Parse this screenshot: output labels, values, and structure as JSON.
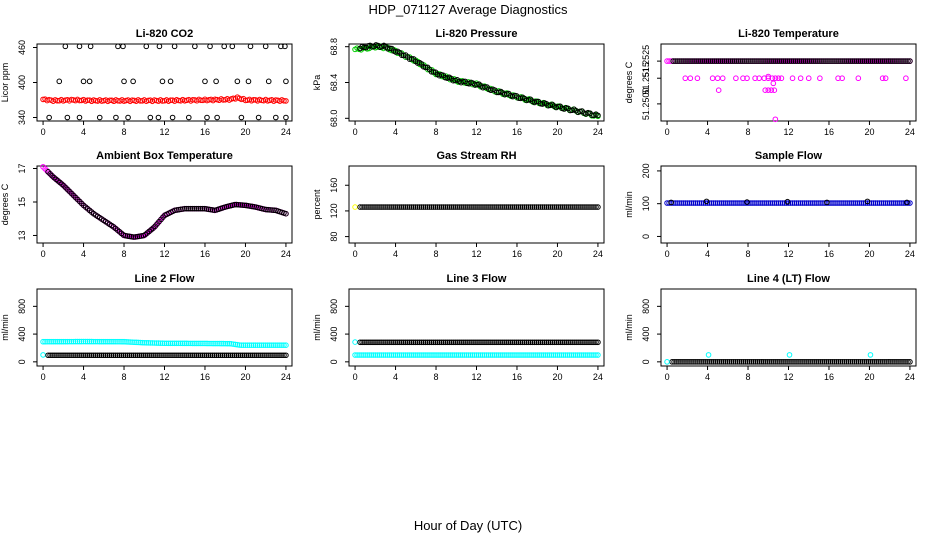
{
  "figure": {
    "title": "HDP_071127  Average Diagnostics",
    "xlabel": "Hour of Day (UTC)"
  },
  "chart_data": [
    {
      "type": "scatter",
      "title": "Li-820 CO2",
      "ylabel": "Licor ppm",
      "xlim": [
        -0.6,
        24.6
      ],
      "ylim": [
        334,
        466
      ],
      "xticks": [
        0,
        4,
        8,
        12,
        16,
        20,
        24
      ],
      "yticks": [
        340,
        400,
        460
      ],
      "series": [
        {
          "name": "co2-black-high",
          "color": "#000000",
          "x": [
            2.2,
            3.6,
            4.7,
            7.4,
            7.9,
            10.2,
            11.5,
            13.0,
            15.0,
            16.5,
            17.9,
            18.7,
            20.5,
            22.0,
            23.5,
            23.9
          ],
          "y": [
            462,
            462,
            462,
            462,
            462,
            462,
            462,
            462,
            462,
            462,
            462,
            462,
            462,
            462,
            462,
            462
          ]
        },
        {
          "name": "co2-black-mid",
          "color": "#000000",
          "x": [
            1.6,
            4.0,
            4.6,
            8.0,
            8.9,
            11.8,
            12.6,
            16.0,
            17.1,
            19.2,
            20.3,
            22.3,
            24.0
          ],
          "y": [
            402,
            402,
            402,
            402,
            402,
            402,
            402,
            402,
            402,
            402,
            402,
            402,
            402
          ]
        },
        {
          "name": "co2-black-low",
          "color": "#000000",
          "x": [
            0.6,
            2.4,
            3.6,
            5.6,
            7.2,
            8.4,
            10.6,
            11.4,
            12.8,
            14.4,
            16.2,
            17.2,
            19.6,
            21.3,
            23.0,
            24.0
          ],
          "y": [
            340,
            340,
            340,
            340,
            340,
            340,
            340,
            340,
            340,
            340,
            340,
            340,
            340,
            340,
            340,
            340
          ]
        },
        {
          "name": "co2-red",
          "color": "#ff0000",
          "dense": true,
          "pattern": "co2",
          "x": [
            0,
            1,
            3,
            5,
            8,
            12,
            16,
            18.5,
            19.2,
            20,
            24
          ],
          "y": [
            371,
            369,
            370,
            369,
            369,
            369,
            370,
            371,
            374,
            370,
            369
          ]
        }
      ]
    },
    {
      "type": "scatter",
      "title": "Li-820 Pressure",
      "ylabel": "kPa",
      "xlim": [
        -0.6,
        24.6
      ],
      "ylim": [
        67.97,
        68.83
      ],
      "xticks": [
        0,
        4,
        8,
        12,
        16,
        20,
        24
      ],
      "yticks": [
        68.0,
        68.4,
        68.8
      ],
      "ytick_labels": [
        "68.0",
        "68.4",
        "68.8"
      ],
      "series": [
        {
          "name": "pressure-green",
          "color": "#00cc00",
          "dense": true,
          "pattern": "pressure",
          "x": [
            0,
            1,
            2,
            3,
            4,
            6,
            8,
            10,
            12,
            14,
            16,
            18,
            20,
            22,
            24
          ],
          "y": [
            68.77,
            68.78,
            68.8,
            68.79,
            68.75,
            68.64,
            68.5,
            68.42,
            68.38,
            68.3,
            68.24,
            68.18,
            68.13,
            68.08,
            68.02
          ]
        },
        {
          "name": "pressure-black",
          "color": "#000000",
          "dense": true,
          "pattern": "pressure",
          "x": [
            0.5,
            1,
            2,
            3,
            4,
            6,
            8,
            10,
            12,
            14,
            16,
            18,
            20,
            22,
            24
          ],
          "y": [
            68.78,
            68.8,
            68.81,
            68.8,
            68.75,
            68.64,
            68.5,
            68.42,
            68.38,
            68.3,
            68.24,
            68.18,
            68.13,
            68.08,
            68.03
          ]
        }
      ]
    },
    {
      "type": "scatter",
      "title": "Li-820 Temperature",
      "ylabel": "degrees C",
      "xlim": [
        -0.6,
        24.6
      ],
      "ylim": [
        51.249,
        51.2535
      ],
      "xticks": [
        0,
        4,
        8,
        12,
        16,
        20,
        24
      ],
      "yticks": [
        51.25,
        51.2515,
        51.2525
      ],
      "ytick_labels": [
        "51.2500",
        "51.2515",
        "51.2525"
      ],
      "series": [
        {
          "name": "temp-magenta-top",
          "color": "#ff00ff",
          "dense": true,
          "pattern": "flat",
          "x": [
            0,
            24
          ],
          "y": [
            51.2525,
            51.2525
          ]
        },
        {
          "name": "temp-black-top",
          "color": "#000000",
          "dense": true,
          "pattern": "flat",
          "x": [
            0.6,
            24
          ],
          "y": [
            51.2525,
            51.2525
          ]
        },
        {
          "name": "temp-magenta-mid",
          "color": "#ff00ff",
          "x": [
            1.8,
            2.3,
            3.0,
            4.5,
            5.0,
            5.5,
            6.8,
            7.5,
            7.9,
            8.7,
            9.1,
            9.6,
            10.0,
            10.4,
            10.7,
            11.0,
            11.3,
            12.4,
            13.2,
            14.0,
            15.1,
            16.9,
            17.3,
            18.9,
            21.3,
            21.6,
            23.6
          ],
          "y": [
            51.2515,
            51.2515,
            51.2515,
            51.2515,
            51.2515,
            51.2515,
            51.2515,
            51.2515,
            51.2515,
            51.2515,
            51.2515,
            51.2515,
            51.2515,
            51.2515,
            51.2515,
            51.2515,
            51.2515,
            51.2515,
            51.2515,
            51.2515,
            51.2515,
            51.2515,
            51.2515,
            51.2515,
            51.2515,
            51.2515,
            51.2515
          ]
        },
        {
          "name": "temp-magenta-low",
          "color": "#ff00ff",
          "x": [
            5.1,
            9.7,
            10.0,
            10.3,
            10.6,
            10.0,
            10.5,
            10.7
          ],
          "y": [
            51.2508,
            51.2508,
            51.2508,
            51.2508,
            51.2508,
            51.2516,
            51.2512,
            51.2491
          ]
        }
      ]
    },
    {
      "type": "scatter",
      "title": "Ambient Box Temperature",
      "ylabel": "degrees C",
      "xlim": [
        -0.6,
        24.6
      ],
      "ylim": [
        12.55,
        17.15
      ],
      "xticks": [
        0,
        4,
        8,
        12,
        16,
        20,
        24
      ],
      "yticks": [
        13,
        15,
        17
      ],
      "series": [
        {
          "name": "box-magenta",
          "color": "#ff00ff",
          "dense": true,
          "pattern": "box",
          "x": [
            0,
            0.5,
            1,
            2,
            3,
            4,
            5,
            6,
            7,
            8,
            9,
            10,
            11,
            12,
            13,
            14,
            15,
            16,
            17,
            18,
            19,
            20,
            21,
            22,
            23,
            24
          ],
          "y": [
            17.1,
            16.8,
            16.5,
            16.0,
            15.4,
            14.8,
            14.3,
            13.9,
            13.5,
            13.0,
            12.9,
            13.0,
            13.5,
            14.2,
            14.5,
            14.6,
            14.6,
            14.6,
            14.5,
            14.7,
            14.85,
            14.8,
            14.7,
            14.55,
            14.5,
            14.3
          ]
        },
        {
          "name": "box-black",
          "color": "#000000",
          "dense": true,
          "pattern": "box",
          "x": [
            0.5,
            1,
            2,
            3,
            4,
            5,
            6,
            7,
            8,
            9,
            10,
            11,
            12,
            13,
            14,
            15,
            16,
            17,
            18,
            19,
            20,
            21,
            22,
            23,
            24
          ],
          "y": [
            16.8,
            16.5,
            16.0,
            15.4,
            14.8,
            14.3,
            13.9,
            13.5,
            13.0,
            12.9,
            13.0,
            13.5,
            14.2,
            14.5,
            14.6,
            14.6,
            14.6,
            14.5,
            14.7,
            14.85,
            14.8,
            14.7,
            14.55,
            14.5,
            14.3
          ]
        }
      ]
    },
    {
      "type": "scatter",
      "title": "Gas Stream RH",
      "ylabel": "percent",
      "xlim": [
        -0.6,
        24.6
      ],
      "ylim": [
        70,
        190
      ],
      "xticks": [
        0,
        4,
        8,
        12,
        16,
        20,
        24
      ],
      "yticks": [
        80,
        120,
        160
      ],
      "series": [
        {
          "name": "rh-yellow",
          "color": "#ffff00",
          "x": [
            0
          ],
          "y": [
            126
          ]
        },
        {
          "name": "rh-black",
          "color": "#000000",
          "dense": true,
          "pattern": "flat",
          "x": [
            0.5,
            24
          ],
          "y": [
            126,
            126
          ]
        }
      ]
    },
    {
      "type": "scatter",
      "title": "Sample Flow",
      "ylabel": "ml/min",
      "xlim": [
        -0.6,
        24.6
      ],
      "ylim": [
        -20,
        215
      ],
      "xticks": [
        0,
        4,
        8,
        12,
        16,
        20,
        24
      ],
      "yticks": [
        0,
        100,
        200
      ],
      "series": [
        {
          "name": "flow-blue",
          "color": "#0000cc",
          "dense": true,
          "pattern": "flat",
          "x": [
            0,
            24
          ],
          "y": [
            102,
            102
          ]
        },
        {
          "name": "flow-black",
          "color": "#000000",
          "x": [
            0.4,
            3.9,
            7.9,
            11.9,
            15.8,
            19.8,
            23.7
          ],
          "y": [
            104,
            107,
            105,
            106,
            104,
            107,
            104
          ]
        }
      ]
    },
    {
      "type": "scatter",
      "title": "Line 2 Flow",
      "ylabel": "ml/min",
      "xlim": [
        -0.6,
        24.6
      ],
      "ylim": [
        -60,
        1050
      ],
      "xticks": [
        0,
        4,
        8,
        12,
        16,
        20,
        24
      ],
      "yticks": [
        0,
        400,
        800
      ],
      "series": [
        {
          "name": "line2-cyan-upper",
          "color": "#00ffff",
          "dense": true,
          "pattern": "line2",
          "x": [
            0,
            4,
            8,
            10,
            12,
            16,
            18.5,
            19.5,
            24
          ],
          "y": [
            290,
            292,
            290,
            275,
            268,
            265,
            262,
            240,
            240
          ]
        },
        {
          "name": "line2-cyan-start",
          "color": "#00ffff",
          "x": [
            0
          ],
          "y": [
            100
          ]
        },
        {
          "name": "line2-black",
          "color": "#000000",
          "dense": true,
          "pattern": "flat",
          "x": [
            0.5,
            24
          ],
          "y": [
            95,
            95
          ]
        }
      ]
    },
    {
      "type": "scatter",
      "title": "Line 3 Flow",
      "ylabel": "ml/min",
      "xlim": [
        -0.6,
        24.6
      ],
      "ylim": [
        -60,
        1050
      ],
      "xticks": [
        0,
        4,
        8,
        12,
        16,
        20,
        24
      ],
      "yticks": [
        0,
        400,
        800
      ],
      "series": [
        {
          "name": "line3-cyan-lower",
          "color": "#00ffff",
          "dense": true,
          "pattern": "flat",
          "x": [
            0,
            24
          ],
          "y": [
            98,
            98
          ]
        },
        {
          "name": "line3-cyan-start",
          "color": "#00ffff",
          "x": [
            0
          ],
          "y": [
            285
          ]
        },
        {
          "name": "line3-black",
          "color": "#000000",
          "dense": true,
          "pattern": "flat",
          "x": [
            0.5,
            24
          ],
          "y": [
            282,
            282
          ]
        }
      ]
    },
    {
      "type": "scatter",
      "title": "Line 4 (LT) Flow",
      "ylabel": "ml/min",
      "xlim": [
        -0.6,
        24.6
      ],
      "ylim": [
        -60,
        1050
      ],
      "xticks": [
        0,
        4,
        8,
        12,
        16,
        20,
        24
      ],
      "yticks": [
        0,
        400,
        800
      ],
      "series": [
        {
          "name": "line4-black",
          "color": "#000000",
          "dense": true,
          "pattern": "flat",
          "x": [
            0.5,
            24
          ],
          "y": [
            0,
            0
          ]
        },
        {
          "name": "line4-cyan",
          "color": "#00ffff",
          "x": [
            0,
            4.1,
            12.1,
            20.1
          ],
          "y": [
            0,
            100,
            100,
            100
          ]
        }
      ]
    }
  ]
}
